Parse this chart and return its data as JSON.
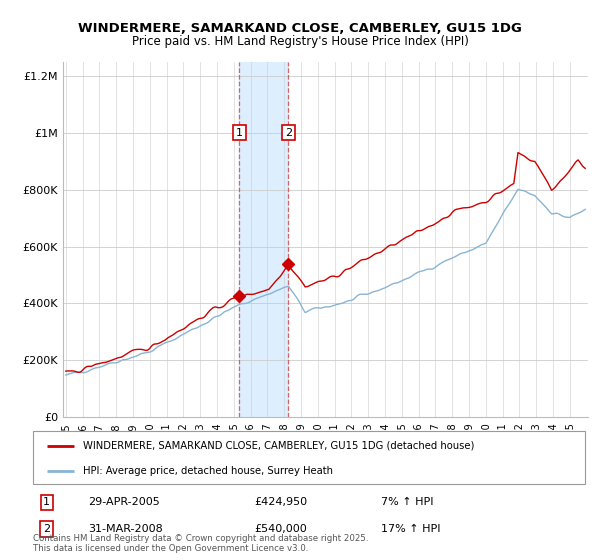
{
  "title": "WINDERMERE, SAMARKAND CLOSE, CAMBERLEY, GU15 1DG",
  "subtitle": "Price paid vs. HM Land Registry's House Price Index (HPI)",
  "background_color": "#ffffff",
  "plot_background": "#ffffff",
  "grid_color": "#cccccc",
  "red_line_color": "#cc0000",
  "blue_line_color": "#89b4d4",
  "shade_color": "#ddeeff",
  "marker1_label": "1",
  "marker2_label": "2",
  "marker1_date": "29-APR-2005",
  "marker1_price": "£424,950",
  "marker1_hpi": "7% ↑ HPI",
  "marker2_date": "31-MAR-2008",
  "marker2_price": "£540,000",
  "marker2_hpi": "17% ↑ HPI",
  "legend_line1": "WINDERMERE, SAMARKAND CLOSE, CAMBERLEY, GU15 1DG (detached house)",
  "legend_line2": "HPI: Average price, detached house, Surrey Heath",
  "footer": "Contains HM Land Registry data © Crown copyright and database right 2025.\nThis data is licensed under the Open Government Licence v3.0.",
  "start_year": 1995,
  "end_year": 2025,
  "marker1_month": 124,
  "marker2_month": 159,
  "marker1_value": 424950,
  "marker2_value": 540000,
  "ylim_max": 1250000,
  "ylim_min": 0,
  "yticks": [
    0,
    200000,
    400000,
    600000,
    800000,
    1000000,
    1200000
  ],
  "ylabels": [
    "£0",
    "£200K",
    "£400K",
    "£600K",
    "£800K",
    "£1M",
    "£1.2M"
  ]
}
